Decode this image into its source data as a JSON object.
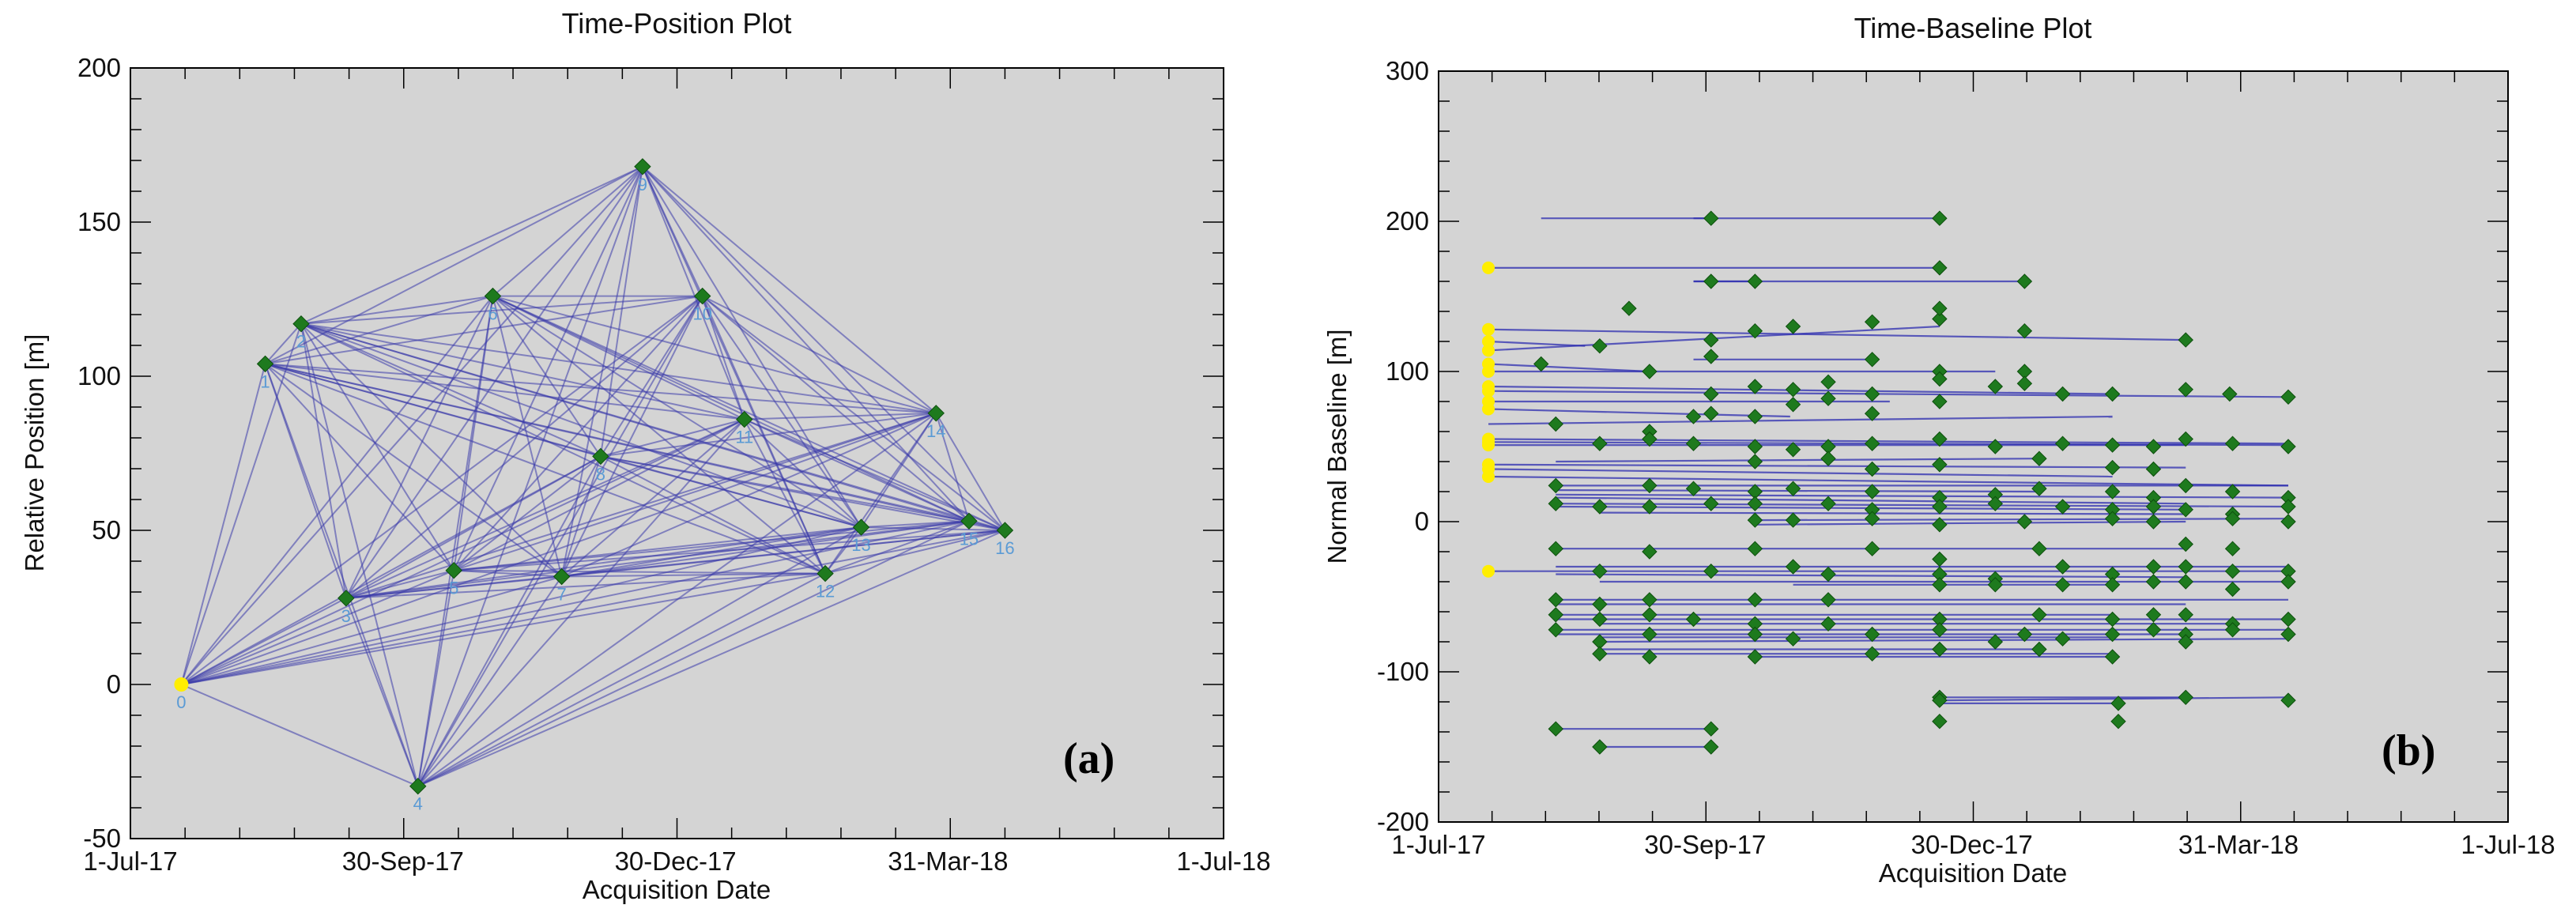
{
  "panels": [
    {
      "id": "a",
      "label": "(a)"
    },
    {
      "id": "b",
      "label": "(b)"
    }
  ],
  "chart_data": [
    {
      "type": "scatter",
      "title": "Time-Position Plot",
      "xlabel": "Acquisition Date",
      "ylabel": "Relative Position [m]",
      "xticks": [
        "1-Jul-17",
        "30-Sep-17",
        "30-Dec-17",
        "31-Mar-18",
        "1-Jul-18"
      ],
      "x_unit": "days since 1-Jul-17",
      "xlim": [
        0,
        365
      ],
      "ylim": [
        -50,
        200
      ],
      "yticks": [
        -50,
        0,
        50,
        100,
        150,
        200
      ],
      "colors": {
        "line": "#3a3aaa",
        "point": "#1e7a1e",
        "reference": "#ffee00",
        "label": "#5b9bd5",
        "background": "#d4d4d4"
      },
      "points": [
        {
          "label": "0",
          "x": 17,
          "y": 0,
          "reference": true
        },
        {
          "label": "1",
          "x": 45,
          "y": 104
        },
        {
          "label": "2",
          "x": 57,
          "y": 117
        },
        {
          "label": "3",
          "x": 72,
          "y": 28
        },
        {
          "label": "4",
          "x": 96,
          "y": -33
        },
        {
          "label": "5",
          "x": 108,
          "y": 37
        },
        {
          "label": "6",
          "x": 121,
          "y": 126
        },
        {
          "label": "7",
          "x": 144,
          "y": 35
        },
        {
          "label": "8",
          "x": 157,
          "y": 74
        },
        {
          "label": "9",
          "x": 171,
          "y": 168
        },
        {
          "label": "10",
          "x": 191,
          "y": 126
        },
        {
          "label": "11",
          "x": 205,
          "y": 86
        },
        {
          "label": "12",
          "x": 232,
          "y": 36
        },
        {
          "label": "13",
          "x": 244,
          "y": 51
        },
        {
          "label": "14",
          "x": 269,
          "y": 88
        },
        {
          "label": "15",
          "x": 280,
          "y": 53
        },
        {
          "label": "16",
          "x": 292,
          "y": 50
        }
      ],
      "connections": "all pairs of acquisitions (except 0-4 drawn lightly)"
    },
    {
      "type": "scatter",
      "title": "Time-Baseline Plot",
      "xlabel": "Acquisition Date",
      "ylabel": "Normal Baseline [m]",
      "xticks": [
        "1-Jul-17",
        "30-Sep-17",
        "30-Dec-17",
        "31-Mar-18",
        "1-Jul-18"
      ],
      "x_unit": "days since 1-Jul-17",
      "xlim": [
        0,
        365
      ],
      "ylim": [
        -200,
        300
      ],
      "yticks": [
        -200,
        -100,
        0,
        100,
        200,
        300
      ],
      "segments": [
        [
          35,
          202,
          93,
          202
        ],
        [
          87,
          202,
          171,
          202
        ],
        [
          17,
          169,
          171,
          169
        ],
        [
          87,
          160,
          200,
          160
        ],
        [
          87,
          160,
          108,
          160
        ],
        [
          17,
          128,
          255,
          121
        ],
        [
          17,
          120,
          50,
          117
        ],
        [
          17,
          114,
          171,
          130
        ],
        [
          87,
          108,
          148,
          108
        ],
        [
          17,
          105,
          72,
          100
        ],
        [
          17,
          100,
          190,
          100
        ],
        [
          17,
          90,
          230,
          85
        ],
        [
          17,
          87,
          290,
          83
        ],
        [
          17,
          80,
          154,
          80
        ],
        [
          17,
          75,
          120,
          70
        ],
        [
          17,
          65,
          230,
          70
        ],
        [
          17,
          55,
          290,
          52
        ],
        [
          17,
          53,
          290,
          51
        ],
        [
          17,
          51,
          255,
          51
        ],
        [
          40,
          40,
          205,
          42
        ],
        [
          17,
          38,
          255,
          36
        ],
        [
          17,
          35,
          230,
          30
        ],
        [
          17,
          30,
          290,
          24
        ],
        [
          40,
          24,
          290,
          24
        ],
        [
          40,
          21,
          205,
          20
        ],
        [
          40,
          18,
          290,
          16
        ],
        [
          40,
          16,
          255,
          12
        ],
        [
          40,
          12,
          290,
          10
        ],
        [
          40,
          10,
          255,
          8
        ],
        [
          55,
          6,
          255,
          5
        ],
        [
          108,
          1,
          290,
          2
        ],
        [
          108,
          -2,
          255,
          0
        ],
        [
          40,
          -18,
          255,
          -18
        ],
        [
          17,
          -33,
          290,
          -33
        ],
        [
          40,
          -30,
          290,
          -30
        ],
        [
          40,
          -35,
          255,
          -37
        ],
        [
          55,
          -40,
          290,
          -40
        ],
        [
          121,
          -42,
          232,
          -42
        ],
        [
          40,
          -52,
          290,
          -52
        ],
        [
          40,
          -55,
          255,
          -55
        ],
        [
          40,
          -62,
          230,
          -62
        ],
        [
          40,
          -65,
          290,
          -65
        ],
        [
          55,
          -68,
          271,
          -68
        ],
        [
          40,
          -72,
          290,
          -72
        ],
        [
          40,
          -75,
          255,
          -75
        ],
        [
          55,
          -77,
          230,
          -77
        ],
        [
          55,
          -80,
          290,
          -78
        ],
        [
          55,
          -85,
          205,
          -85
        ],
        [
          55,
          -88,
          230,
          -88
        ],
        [
          108,
          -90,
          230,
          -90
        ],
        [
          171,
          -117,
          255,
          -117
        ],
        [
          171,
          -119,
          290,
          -117
        ],
        [
          171,
          -121,
          232,
          -121
        ],
        [
          40,
          -138,
          93,
          -138
        ],
        [
          55,
          -150,
          93,
          -150
        ]
      ],
      "points": [
        [
          93,
          202
        ],
        [
          171,
          202
        ],
        [
          93,
          160
        ],
        [
          108,
          160
        ],
        [
          171,
          169
        ],
        [
          200,
          160
        ],
        [
          65,
          142
        ],
        [
          121,
          130
        ],
        [
          148,
          133
        ],
        [
          171,
          135
        ],
        [
          171,
          142
        ],
        [
          200,
          127
        ],
        [
          55,
          117
        ],
        [
          93,
          121
        ],
        [
          108,
          127
        ],
        [
          148,
          108
        ],
        [
          171,
          100
        ],
        [
          200,
          100
        ],
        [
          72,
          100
        ],
        [
          93,
          110
        ],
        [
          255,
          121
        ],
        [
          35,
          105
        ],
        [
          93,
          85
        ],
        [
          108,
          90
        ],
        [
          121,
          88
        ],
        [
          133,
          82
        ],
        [
          148,
          85
        ],
        [
          171,
          95
        ],
        [
          190,
          90
        ],
        [
          200,
          92
        ],
        [
          213,
          85
        ],
        [
          230,
          85
        ],
        [
          255,
          88
        ],
        [
          270,
          85
        ],
        [
          290,
          83
        ],
        [
          40,
          65
        ],
        [
          72,
          60
        ],
        [
          87,
          70
        ],
        [
          93,
          72
        ],
        [
          108,
          70
        ],
        [
          121,
          78
        ],
        [
          148,
          72
        ],
        [
          171,
          80
        ],
        [
          133,
          93
        ],
        [
          55,
          52
        ],
        [
          72,
          55
        ],
        [
          87,
          52
        ],
        [
          108,
          50
        ],
        [
          121,
          48
        ],
        [
          133,
          50
        ],
        [
          148,
          52
        ],
        [
          171,
          55
        ],
        [
          190,
          50
        ],
        [
          213,
          52
        ],
        [
          230,
          51
        ],
        [
          244,
          50
        ],
        [
          255,
          55
        ],
        [
          271,
          52
        ],
        [
          290,
          50
        ],
        [
          108,
          40
        ],
        [
          133,
          42
        ],
        [
          148,
          35
        ],
        [
          171,
          38
        ],
        [
          205,
          42
        ],
        [
          230,
          36
        ],
        [
          244,
          35
        ],
        [
          40,
          24
        ],
        [
          72,
          24
        ],
        [
          87,
          22
        ],
        [
          108,
          20
        ],
        [
          121,
          22
        ],
        [
          148,
          20
        ],
        [
          171,
          16
        ],
        [
          190,
          18
        ],
        [
          205,
          22
        ],
        [
          230,
          20
        ],
        [
          244,
          16
        ],
        [
          255,
          24
        ],
        [
          271,
          20
        ],
        [
          290,
          16
        ],
        [
          40,
          12
        ],
        [
          55,
          10
        ],
        [
          72,
          10
        ],
        [
          93,
          12
        ],
        [
          108,
          12
        ],
        [
          133,
          12
        ],
        [
          148,
          8
        ],
        [
          171,
          10
        ],
        [
          190,
          12
        ],
        [
          213,
          10
        ],
        [
          230,
          8
        ],
        [
          244,
          10
        ],
        [
          255,
          8
        ],
        [
          271,
          5
        ],
        [
          290,
          10
        ],
        [
          108,
          1
        ],
        [
          121,
          1
        ],
        [
          148,
          2
        ],
        [
          171,
          -2
        ],
        [
          200,
          0
        ],
        [
          230,
          2
        ],
        [
          244,
          0
        ],
        [
          271,
          2
        ],
        [
          290,
          0
        ],
        [
          40,
          -18
        ],
        [
          72,
          -20
        ],
        [
          108,
          -18
        ],
        [
          148,
          -18
        ],
        [
          171,
          -25
        ],
        [
          205,
          -18
        ],
        [
          255,
          -15
        ],
        [
          271,
          -18
        ],
        [
          55,
          -33
        ],
        [
          93,
          -33
        ],
        [
          121,
          -30
        ],
        [
          133,
          -35
        ],
        [
          171,
          -35
        ],
        [
          190,
          -38
        ],
        [
          213,
          -30
        ],
        [
          230,
          -35
        ],
        [
          244,
          -30
        ],
        [
          255,
          -30
        ],
        [
          271,
          -33
        ],
        [
          290,
          -33
        ],
        [
          40,
          -52
        ],
        [
          55,
          -55
        ],
        [
          72,
          -52
        ],
        [
          108,
          -52
        ],
        [
          133,
          -52
        ],
        [
          171,
          -42
        ],
        [
          190,
          -42
        ],
        [
          213,
          -42
        ],
        [
          230,
          -42
        ],
        [
          244,
          -40
        ],
        [
          255,
          -40
        ],
        [
          271,
          -45
        ],
        [
          290,
          -40
        ],
        [
          40,
          -62
        ],
        [
          55,
          -65
        ],
        [
          72,
          -62
        ],
        [
          87,
          -65
        ],
        [
          108,
          -68
        ],
        [
          133,
          -68
        ],
        [
          171,
          -65
        ],
        [
          205,
          -62
        ],
        [
          230,
          -65
        ],
        [
          244,
          -62
        ],
        [
          255,
          -62
        ],
        [
          271,
          -68
        ],
        [
          290,
          -65
        ],
        [
          40,
          -72
        ],
        [
          55,
          -80
        ],
        [
          72,
          -75
        ],
        [
          108,
          -75
        ],
        [
          121,
          -78
        ],
        [
          148,
          -75
        ],
        [
          171,
          -72
        ],
        [
          200,
          -75
        ],
        [
          213,
          -78
        ],
        [
          230,
          -75
        ],
        [
          244,
          -72
        ],
        [
          255,
          -75
        ],
        [
          271,
          -72
        ],
        [
          290,
          -75
        ],
        [
          55,
          -88
        ],
        [
          72,
          -90
        ],
        [
          108,
          -90
        ],
        [
          148,
          -88
        ],
        [
          171,
          -85
        ],
        [
          205,
          -85
        ],
        [
          230,
          -90
        ],
        [
          255,
          -80
        ],
        [
          190,
          -80
        ],
        [
          171,
          -117
        ],
        [
          255,
          -117
        ],
        [
          290,
          -119
        ],
        [
          171,
          -119
        ],
        [
          232,
          -121
        ],
        [
          40,
          -138
        ],
        [
          93,
          -138
        ],
        [
          55,
          -150
        ],
        [
          93,
          -150
        ],
        [
          171,
          -133
        ],
        [
          232,
          -133
        ]
      ],
      "reference_points": [
        [
          17,
          169
        ],
        [
          17,
          128
        ],
        [
          17,
          120
        ],
        [
          17,
          114
        ],
        [
          17,
          105
        ],
        [
          17,
          100
        ],
        [
          17,
          90
        ],
        [
          17,
          87
        ],
        [
          17,
          80
        ],
        [
          17,
          75
        ],
        [
          17,
          55
        ],
        [
          17,
          53
        ],
        [
          17,
          51
        ],
        [
          17,
          38
        ],
        [
          17,
          35
        ],
        [
          17,
          30
        ],
        [
          17,
          -33
        ]
      ]
    }
  ]
}
